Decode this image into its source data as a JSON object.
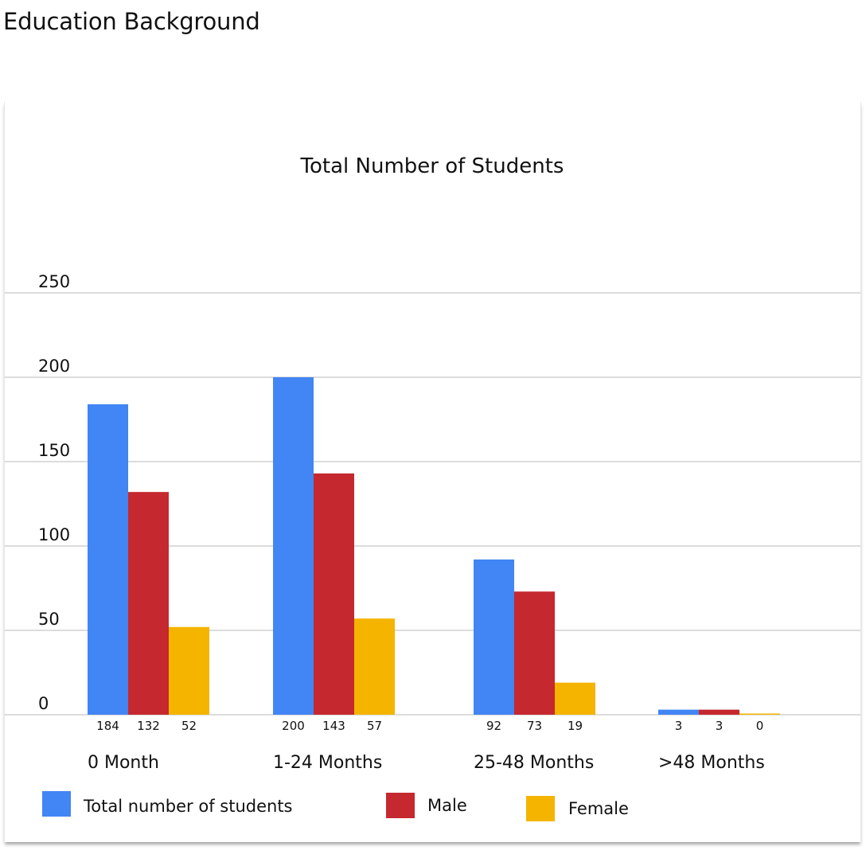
{
  "page": {
    "heading": "Education Background"
  },
  "chart_data": {
    "type": "bar",
    "title": "Total Number of Students",
    "xlabel": "",
    "ylabel": "",
    "categories": [
      "0 Month",
      "1-24 Months",
      "25-48 Months",
      ">48 Months"
    ],
    "series": [
      {
        "name": "Total number of students",
        "color": "#4285f4",
        "values": [
          184,
          200,
          92,
          3
        ]
      },
      {
        "name": "Male",
        "color": "#c5282f",
        "values": [
          132,
          143,
          73,
          3
        ]
      },
      {
        "name": "Female",
        "color": "#f4b400",
        "values": [
          52,
          57,
          19,
          0
        ]
      }
    ],
    "yticks": [
      "0",
      "50",
      "100",
      "150",
      "200",
      "250"
    ],
    "ylim": [
      0,
      250
    ],
    "grid": true,
    "legend_position": "bottom"
  }
}
